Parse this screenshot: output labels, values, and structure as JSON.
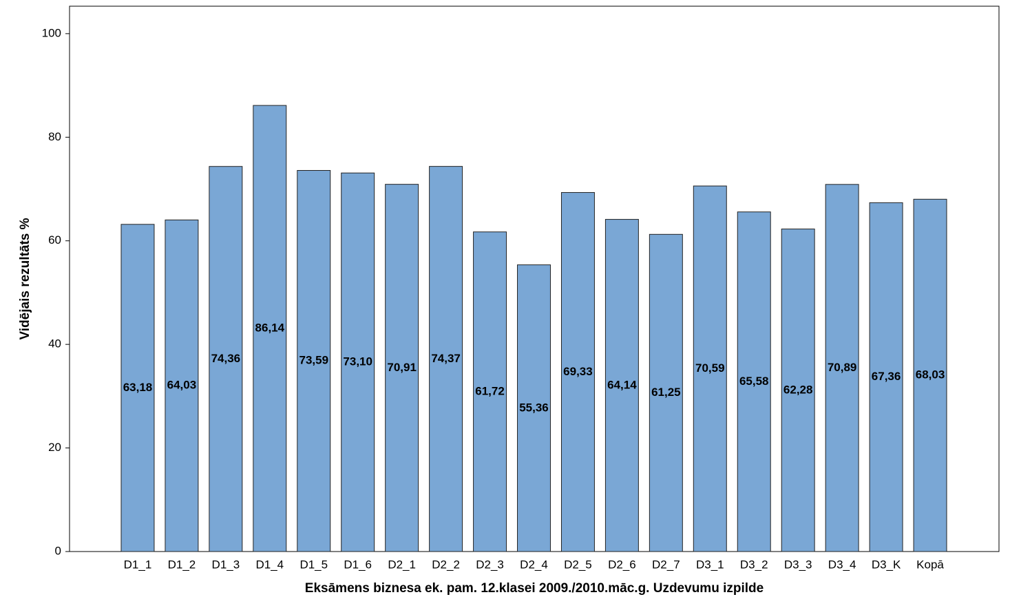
{
  "chart_data": {
    "type": "bar",
    "x_label": "Eksāmens biznesa ek. pam. 12.klasei 2009./2010.māc.g. Uzdevumu izpilde",
    "y_label": "Vidējais rezultāts %",
    "categories": [
      "D1_1",
      "D1_2",
      "D1_3",
      "D1_4",
      "D1_5",
      "D1_6",
      "D2_1",
      "D2_2",
      "D2_3",
      "D2_4",
      "D2_5",
      "D2_6",
      "D2_7",
      "D3_1",
      "D3_2",
      "D3_3",
      "D3_4",
      "D3_K",
      "Kopā"
    ],
    "values": [
      63.18,
      64.03,
      74.36,
      86.14,
      73.59,
      73.1,
      70.91,
      74.37,
      61.72,
      55.36,
      69.33,
      64.14,
      61.25,
      70.59,
      65.58,
      62.28,
      70.89,
      67.36,
      68.03
    ],
    "value_labels": [
      "63,18",
      "64,03",
      "74,36",
      "86,14",
      "73,59",
      "73,10",
      "70,91",
      "74,37",
      "61,72",
      "55,36",
      "69,33",
      "64,14",
      "61,25",
      "70,59",
      "65,58",
      "62,28",
      "70,89",
      "67,36",
      "68,03"
    ],
    "color": "#7aa7d5",
    "ylim": [
      0,
      105.3
    ],
    "yticks": [
      0,
      20,
      40,
      60,
      80,
      100
    ]
  }
}
